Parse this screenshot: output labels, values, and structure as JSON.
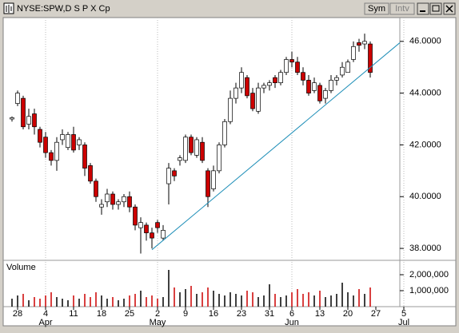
{
  "window": {
    "buttons": [
      "Sym",
      "Intv"
    ]
  },
  "chart_data": {
    "type": "candlestick",
    "title": "NYSE:SPW,D S P X Cp",
    "categories": [
      null,
      "28",
      null,
      null,
      null,
      null,
      "4",
      null,
      null,
      null,
      null,
      "11",
      null,
      null,
      null,
      null,
      "18",
      null,
      null,
      null,
      null,
      "25",
      null,
      null,
      null,
      null,
      "2",
      null,
      null,
      null,
      null,
      "9",
      null,
      null,
      null,
      null,
      "16",
      null,
      null,
      null,
      null,
      "23",
      null,
      null,
      null,
      null,
      "31",
      null,
      null,
      null,
      "6",
      null,
      null,
      null,
      null,
      "13",
      null,
      null,
      null,
      null,
      "20",
      null,
      null,
      null,
      null,
      "27",
      null,
      null,
      null,
      null,
      "5"
    ],
    "months": [
      null,
      null,
      null,
      null,
      null,
      null,
      "Apr",
      null,
      null,
      null,
      null,
      null,
      null,
      null,
      null,
      null,
      null,
      null,
      null,
      null,
      null,
      null,
      null,
      null,
      null,
      null,
      "May",
      null,
      null,
      null,
      null,
      null,
      null,
      null,
      null,
      null,
      null,
      null,
      null,
      null,
      null,
      null,
      null,
      null,
      null,
      null,
      null,
      null,
      null,
      null,
      "Jun",
      null,
      null,
      null,
      null,
      null,
      null,
      null,
      null,
      null,
      null,
      null,
      null,
      null,
      null,
      null,
      null,
      null,
      null,
      null,
      "Jul"
    ],
    "open": [
      43.0,
      43.6,
      43.8,
      42.8,
      43.2,
      42.6,
      42.3,
      41.7,
      41.4,
      42.2,
      41.9,
      42.4,
      42.0,
      42.0,
      41.2,
      40.6,
      39.6,
      39.8,
      40.1,
      39.7,
      39.8,
      40.0,
      39.6,
      38.8,
      38.9,
      38.6,
      39.0,
      38.4,
      40.5,
      41.0,
      41.4,
      41.4,
      42.3,
      41.6,
      42.1,
      41.0,
      40.3,
      41.0,
      42.0,
      42.9,
      43.8,
      44.2,
      44.6,
      44.0,
      43.3,
      44.2,
      44.3,
      44.6,
      44.4,
      44.8,
      45.3,
      45.2,
      44.8,
      44.5,
      44.1,
      44.3,
      43.8,
      44.1,
      44.5,
      44.7,
      44.8,
      45.3,
      45.95,
      45.9,
      45.9,
      null,
      null,
      null,
      null,
      null,
      null
    ],
    "high": [
      43.1,
      44.1,
      43.9,
      43.4,
      43.4,
      42.7,
      42.5,
      41.8,
      42.3,
      42.6,
      42.5,
      42.7,
      42.3,
      42.1,
      41.3,
      40.7,
      39.9,
      40.3,
      40.2,
      39.9,
      40.1,
      40.2,
      39.7,
      39.2,
      39.0,
      38.8,
      39.1,
      38.9,
      41.3,
      41.1,
      41.6,
      42.4,
      42.4,
      42.3,
      42.3,
      41.1,
      41.2,
      42.1,
      43.0,
      44.1,
      44.4,
      45.0,
      44.7,
      44.2,
      44.4,
      44.4,
      44.5,
      44.7,
      44.9,
      45.4,
      45.6,
      45.4,
      45.0,
      44.7,
      44.6,
      44.4,
      44.2,
      44.7,
      44.7,
      45.2,
      45.3,
      46.0,
      46.1,
      46.3,
      46.0,
      null,
      null,
      null,
      null,
      null,
      null
    ],
    "low": [
      42.9,
      43.5,
      42.6,
      42.6,
      42.4,
      41.9,
      41.5,
      41.2,
      41.0,
      42.0,
      41.8,
      41.7,
      41.8,
      40.8,
      40.5,
      39.8,
      39.3,
      39.6,
      39.5,
      39.5,
      39.6,
      39.4,
      38.7,
      37.8,
      38.3,
      38.0,
      38.6,
      38.3,
      39.7,
      40.6,
      41.2,
      41.3,
      41.6,
      41.5,
      41.3,
      39.6,
      40.2,
      40.9,
      41.9,
      42.8,
      43.6,
      44.0,
      43.8,
      43.3,
      43.2,
      44.0,
      44.1,
      44.2,
      44.3,
      44.7,
      45.0,
      44.7,
      44.3,
      43.9,
      44.0,
      43.6,
      43.6,
      44.0,
      44.3,
      44.6,
      44.8,
      45.2,
      45.6,
      45.7,
      44.6,
      null,
      null,
      null,
      null,
      null,
      null
    ],
    "close": [
      43.05,
      44.0,
      42.7,
      43.1,
      42.7,
      42.1,
      41.7,
      41.4,
      42.1,
      42.4,
      42.4,
      41.8,
      42.2,
      41.1,
      40.6,
      40.0,
      39.7,
      40.1,
      39.7,
      39.8,
      40.0,
      39.6,
      38.9,
      39.0,
      38.6,
      38.4,
      38.8,
      38.7,
      41.1,
      40.8,
      41.5,
      42.3,
      41.7,
      42.2,
      41.4,
      40.0,
      41.0,
      42.0,
      42.9,
      43.8,
      44.2,
      44.8,
      43.9,
      43.4,
      44.2,
      44.3,
      44.4,
      44.4,
      44.8,
      45.3,
      45.2,
      44.8,
      44.5,
      44.0,
      44.4,
      43.7,
      44.1,
      44.5,
      44.6,
      45.0,
      45.2,
      45.8,
      45.85,
      46.0,
      44.8,
      null,
      null,
      null,
      null,
      null,
      null
    ],
    "up_color": "#ffffff",
    "down_color": "#cc0000",
    "ylim": [
      37.57,
      46.92
    ],
    "yticks": [
      {
        "value": 38,
        "label": "38.0000"
      },
      {
        "value": 40,
        "label": "40.0000"
      },
      {
        "value": 42,
        "label": "42.0000"
      },
      {
        "value": 44,
        "label": "44.0000"
      },
      {
        "value": 46,
        "label": "46.0000"
      }
    ],
    "trendline": {
      "start": [
        25,
        37.95
      ],
      "end": [
        69.3,
        45.95
      ],
      "color": "#1f8fb8"
    },
    "volume": {
      "label": "Volume",
      "values": [
        500000,
        700000,
        800000,
        400000,
        600000,
        500000,
        700000,
        900000,
        600000,
        500000,
        400000,
        700000,
        500000,
        800000,
        600000,
        900000,
        700000,
        500000,
        600000,
        400000,
        500000,
        700000,
        800000,
        1000000,
        600000,
        700000,
        500000,
        600000,
        2300000,
        1200000,
        900000,
        1100000,
        1300000,
        800000,
        900000,
        1200000,
        1000000,
        800000,
        700000,
        900000,
        800000,
        700000,
        1000000,
        900000,
        600000,
        700000,
        1400000,
        800000,
        600000,
        700000,
        900000,
        1100000,
        800000,
        900000,
        700000,
        1000000,
        600000,
        700000,
        800000,
        1500000,
        900000,
        700000,
        1100000,
        800000,
        1200000,
        null,
        null,
        null,
        null,
        null,
        null
      ],
      "ylim": [
        0,
        2750000
      ],
      "yticks": [
        {
          "value": 1000000,
          "label": "1,000,000"
        },
        {
          "value": 2000000,
          "label": "2,000,000"
        }
      ]
    }
  }
}
